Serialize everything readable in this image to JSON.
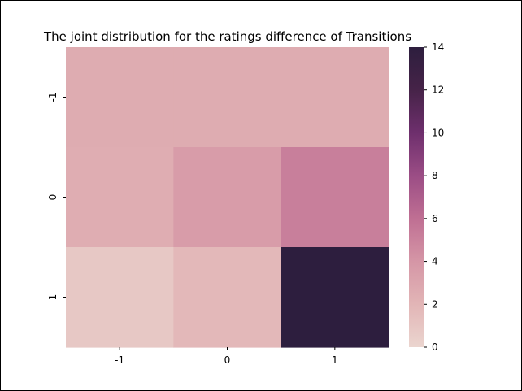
{
  "chart_data": {
    "type": "heatmap",
    "title": "The joint distribution for the ratings difference of Transitions",
    "xlabel": "",
    "ylabel": "",
    "x_categories": [
      "-1",
      "0",
      "1"
    ],
    "y_categories": [
      "-1",
      "0",
      "1"
    ],
    "values": [
      [
        2.6,
        2.6,
        2.6
      ],
      [
        2.5,
        3.6,
        5.2
      ],
      [
        0.8,
        1.8,
        14.0
      ]
    ],
    "colorbar": {
      "min": 0,
      "max": 14,
      "ticks": [
        0,
        2,
        4,
        6,
        8,
        10,
        12,
        14
      ],
      "tick_labels": [
        "0",
        "2",
        "4",
        "6",
        "8",
        "10",
        "12",
        "14"
      ]
    },
    "colormap": [
      "#ebd5cf",
      "#e2b5b6",
      "#d596a6",
      "#bf6f93",
      "#9b4d85",
      "#6e2f6d",
      "#462348",
      "#2d1e3e"
    ],
    "grid": false,
    "legend": "none"
  }
}
